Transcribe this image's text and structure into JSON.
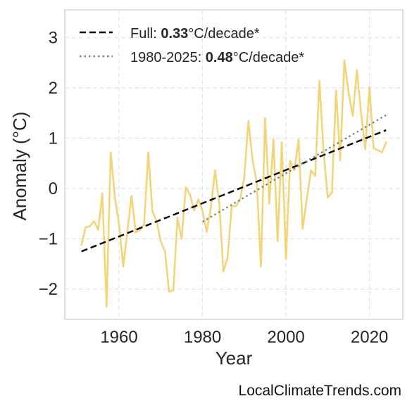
{
  "chart_data": {
    "type": "line",
    "xlabel": "Year",
    "ylabel": "Anomaly (°C)",
    "xlim": [
      1947,
      2028
    ],
    "ylim": [
      -2.6,
      3.55
    ],
    "x_ticks": [
      1960,
      1980,
      2000,
      2020
    ],
    "y_ticks": [
      -2,
      -1,
      0,
      1,
      2,
      3
    ],
    "y_tick_labels": [
      "−2",
      "−1",
      "0",
      "1",
      "2",
      "3"
    ],
    "grid": true,
    "legend_position": "top-left",
    "series": [
      {
        "color": "#f2d479",
        "x": [
          1951,
          1952,
          1953,
          1954,
          1955,
          1956,
          1957,
          1958,
          1959,
          1960,
          1961,
          1962,
          1963,
          1964,
          1965,
          1966,
          1967,
          1968,
          1969,
          1970,
          1971,
          1972,
          1973,
          1974,
          1975,
          1976,
          1977,
          1978,
          1979,
          1980,
          1981,
          1982,
          1983,
          1984,
          1985,
          1986,
          1987,
          1988,
          1989,
          1990,
          1991,
          1992,
          1993,
          1994,
          1995,
          1996,
          1997,
          1998,
          1999,
          2000,
          2001,
          2002,
          2003,
          2004,
          2005,
          2006,
          2007,
          2008,
          2009,
          2010,
          2011,
          2012,
          2013,
          2014,
          2015,
          2016,
          2017,
          2018,
          2019,
          2020,
          2021,
          2022,
          2023,
          2024
        ],
        "y": [
          -1.12,
          -0.77,
          -0.75,
          -0.65,
          -0.82,
          -0.1,
          -2.35,
          0.72,
          -0.18,
          -0.7,
          -1.55,
          -0.85,
          -0.15,
          -0.87,
          -0.82,
          -0.72,
          0.72,
          -0.45,
          -0.65,
          -1.05,
          -1.25,
          -2.05,
          -2.02,
          -0.58,
          -1.0,
          0.02,
          -0.12,
          -0.44,
          -0.22,
          -0.45,
          -0.86,
          -0.38,
          0.36,
          -0.28,
          -1.65,
          -1.38,
          -0.35,
          -0.35,
          -0.22,
          0.22,
          1.34,
          0.55,
          0.12,
          -1.55,
          1.4,
          -0.3,
          0.98,
          -1.05,
          0.92,
          -1.4,
          0.55,
          0.36,
          0.97,
          -0.8,
          -0.2,
          0.36,
          0.25,
          2.14,
          0.75,
          -0.18,
          -0.08,
          1.95,
          0.56,
          2.55,
          1.9,
          1.44,
          2.35,
          1.5,
          0.78,
          2.02,
          0.8,
          0.76,
          0.72,
          0.92
        ]
      }
    ],
    "trend_lines": [
      {
        "name_prefix": "Full: ",
        "name_value": "0.33",
        "name_suffix": "°C/decade*",
        "x_start": 1951,
        "x_end": 2024,
        "y_start": -1.25,
        "y_end": 1.16,
        "style": "dashed",
        "color": "#000000"
      },
      {
        "name_prefix": "1980-2025: ",
        "name_value": "0.48",
        "name_suffix": "°C/decade*",
        "x_start": 1980,
        "x_end": 2024,
        "y_start": -0.66,
        "y_end": 1.46,
        "style": "dotted",
        "color": "#808080"
      }
    ]
  },
  "credit": "LocalClimateTrends.com"
}
